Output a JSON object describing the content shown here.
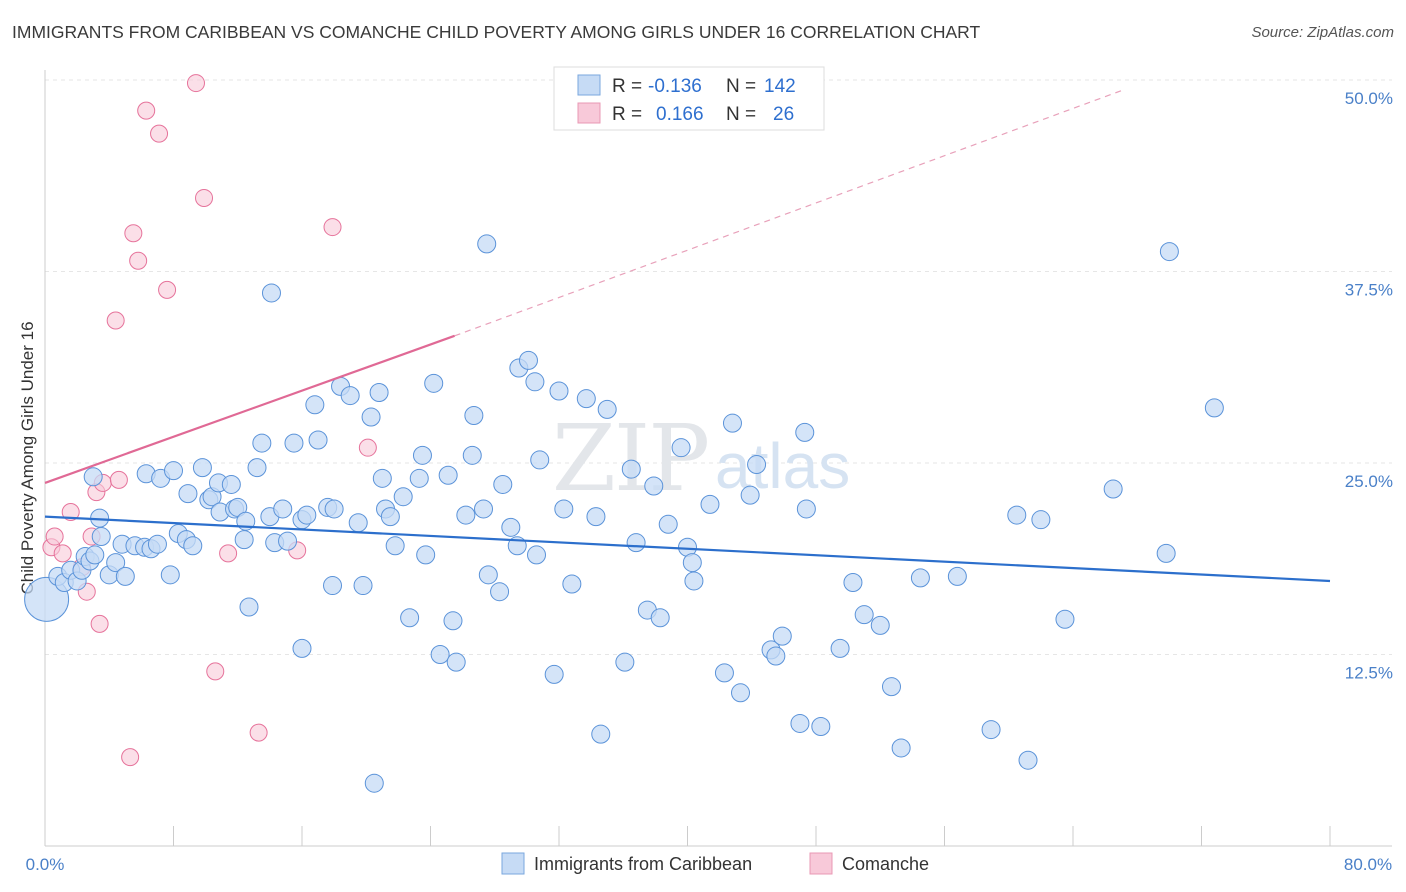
{
  "title": "IMMIGRANTS FROM CARIBBEAN VS COMANCHE CHILD POVERTY AMONG GIRLS UNDER 16 CORRELATION CHART",
  "source": "Source: ZipAtlas.com",
  "watermark": {
    "part1": "ZIP",
    "part2": "atlas"
  },
  "legend": {
    "rows": [
      {
        "r_label": "R =",
        "r_value": "-0.136",
        "n_label": "N =",
        "n_value": "142"
      },
      {
        "r_label": "R =",
        "r_value": "0.166",
        "n_label": "N =",
        "n_value": "26"
      }
    ]
  },
  "bottom_legend": [
    "Immigrants from Caribbean",
    "Comanche"
  ],
  "chart_data": {
    "type": "scatter",
    "ylabel": "Child Poverty Among Girls Under 16",
    "xlabel": "",
    "xlim": [
      0,
      80
    ],
    "ylim": [
      0,
      52
    ],
    "x_tick_labels": {
      "min": "0.0%",
      "max": "80.0%"
    },
    "y_ticks": [
      12.5,
      25.0,
      37.5,
      50.0
    ],
    "y_tick_labels": [
      "12.5%",
      "25.0%",
      "37.5%",
      "50.0%"
    ],
    "grid": true,
    "colors": {
      "caribbean": "#5b93d9",
      "caribbean_fill": "#c6dbf5",
      "comanche": "#e6739b",
      "comanche_fill": "#f8c9d9"
    },
    "series": [
      {
        "name": "Immigrants from Caribbean",
        "R": -0.136,
        "N": 142,
        "trend": {
          "x0": 0,
          "y0": 21.5,
          "x1": 80,
          "y1": 17.3
        },
        "points": [
          [
            0.1,
            16.1
          ],
          [
            0.8,
            17.6
          ],
          [
            1.2,
            17.2
          ],
          [
            1.6,
            18.0
          ],
          [
            2.0,
            17.3
          ],
          [
            2.3,
            18.0
          ],
          [
            2.5,
            18.9
          ],
          [
            2.8,
            18.6
          ],
          [
            3.1,
            19.0
          ],
          [
            3.4,
            21.4
          ],
          [
            3.0,
            24.1
          ],
          [
            4.0,
            17.7
          ],
          [
            4.4,
            18.5
          ],
          [
            5.0,
            17.6
          ],
          [
            4.8,
            19.7
          ],
          [
            5.6,
            19.6
          ],
          [
            6.2,
            19.5
          ],
          [
            6.6,
            19.4
          ],
          [
            7.0,
            19.7
          ],
          [
            7.8,
            17.7
          ],
          [
            6.3,
            24.3
          ],
          [
            7.2,
            24.0
          ],
          [
            8.0,
            24.5
          ],
          [
            8.3,
            20.4
          ],
          [
            8.8,
            20.0
          ],
          [
            9.2,
            19.6
          ],
          [
            8.9,
            23.0
          ],
          [
            9.8,
            24.7
          ],
          [
            10.2,
            22.6
          ],
          [
            10.4,
            22.8
          ],
          [
            10.8,
            23.7
          ],
          [
            10.9,
            21.8
          ],
          [
            11.6,
            23.6
          ],
          [
            11.8,
            22.0
          ],
          [
            12.0,
            22.1
          ],
          [
            12.4,
            20.0
          ],
          [
            12.5,
            21.2
          ],
          [
            12.7,
            15.6
          ],
          [
            13.2,
            24.7
          ],
          [
            13.5,
            26.3
          ],
          [
            14.0,
            21.5
          ],
          [
            14.3,
            19.8
          ],
          [
            14.1,
            36.1
          ],
          [
            14.8,
            22.0
          ],
          [
            15.1,
            19.9
          ],
          [
            15.5,
            26.3
          ],
          [
            16.0,
            21.3
          ],
          [
            16.3,
            21.6
          ],
          [
            16.0,
            12.9
          ],
          [
            16.8,
            28.8
          ],
          [
            17.0,
            26.5
          ],
          [
            17.6,
            22.1
          ],
          [
            18.0,
            22.0
          ],
          [
            17.9,
            17.0
          ],
          [
            18.4,
            30.0
          ],
          [
            19.0,
            29.4
          ],
          [
            19.5,
            21.1
          ],
          [
            19.8,
            17.0
          ],
          [
            20.3,
            28.0
          ],
          [
            20.8,
            29.6
          ],
          [
            21.0,
            24.0
          ],
          [
            21.2,
            22.0
          ],
          [
            21.5,
            21.5
          ],
          [
            21.8,
            19.6
          ],
          [
            22.3,
            22.8
          ],
          [
            22.7,
            14.9
          ],
          [
            23.3,
            24.0
          ],
          [
            23.7,
            19.0
          ],
          [
            24.2,
            30.2
          ],
          [
            24.6,
            12.5
          ],
          [
            25.1,
            24.2
          ],
          [
            25.4,
            14.7
          ],
          [
            25.6,
            12.0
          ],
          [
            26.2,
            21.6
          ],
          [
            26.6,
            25.5
          ],
          [
            26.7,
            28.1
          ],
          [
            27.3,
            22.0
          ],
          [
            27.6,
            17.7
          ],
          [
            27.5,
            39.3
          ],
          [
            28.5,
            23.6
          ],
          [
            28.3,
            16.6
          ],
          [
            29.0,
            20.8
          ],
          [
            29.4,
            19.6
          ],
          [
            29.5,
            31.2
          ],
          [
            30.1,
            31.7
          ],
          [
            30.5,
            30.3
          ],
          [
            30.8,
            25.2
          ],
          [
            31.7,
            11.2
          ],
          [
            32.0,
            29.7
          ],
          [
            32.3,
            22.0
          ],
          [
            32.8,
            17.1
          ],
          [
            33.7,
            29.2
          ],
          [
            34.3,
            21.5
          ],
          [
            34.6,
            7.3
          ],
          [
            35.0,
            28.5
          ],
          [
            36.1,
            12.0
          ],
          [
            36.8,
            19.8
          ],
          [
            36.5,
            24.6
          ],
          [
            37.5,
            15.4
          ],
          [
            37.9,
            23.5
          ],
          [
            38.3,
            14.9
          ],
          [
            38.8,
            21.0
          ],
          [
            39.6,
            26.0
          ],
          [
            40.0,
            19.5
          ],
          [
            40.3,
            18.5
          ],
          [
            40.4,
            17.3
          ],
          [
            41.4,
            22.3
          ],
          [
            42.3,
            11.3
          ],
          [
            42.8,
            27.6
          ],
          [
            43.3,
            10.0
          ],
          [
            43.9,
            22.9
          ],
          [
            44.3,
            24.9
          ],
          [
            45.2,
            12.8
          ],
          [
            45.5,
            12.4
          ],
          [
            45.9,
            13.7
          ],
          [
            47.0,
            8.0
          ],
          [
            47.3,
            27.0
          ],
          [
            47.4,
            22.0
          ],
          [
            48.3,
            7.8
          ],
          [
            49.5,
            12.9
          ],
          [
            50.3,
            17.2
          ],
          [
            51.0,
            15.1
          ],
          [
            52.0,
            14.4
          ],
          [
            52.7,
            10.4
          ],
          [
            53.3,
            6.4
          ],
          [
            54.5,
            17.5
          ],
          [
            56.8,
            17.6
          ],
          [
            58.9,
            7.6
          ],
          [
            60.5,
            21.6
          ],
          [
            61.2,
            5.6
          ],
          [
            62.0,
            21.3
          ],
          [
            63.5,
            14.8
          ],
          [
            66.5,
            23.3
          ],
          [
            70.0,
            38.8
          ],
          [
            69.8,
            19.1
          ],
          [
            72.8,
            28.6
          ],
          [
            20.5,
            4.1
          ],
          [
            23.5,
            25.5
          ],
          [
            30.6,
            19.0
          ],
          [
            3.5,
            20.2
          ]
        ]
      },
      {
        "name": "Comanche",
        "R": 0.166,
        "N": 26,
        "trend": {
          "x0": 0,
          "y0": 23.7,
          "x1": 25.5,
          "y1": 33.3,
          "dash_x1": 67,
          "dash_y1": 49.3
        },
        "points": [
          [
            0.4,
            19.5
          ],
          [
            0.6,
            20.2
          ],
          [
            1.1,
            19.1
          ],
          [
            1.6,
            21.8
          ],
          [
            2.3,
            18.2
          ],
          [
            2.6,
            16.6
          ],
          [
            2.9,
            20.2
          ],
          [
            3.2,
            23.1
          ],
          [
            3.4,
            14.5
          ],
          [
            3.6,
            23.7
          ],
          [
            4.4,
            34.3
          ],
          [
            4.6,
            23.9
          ],
          [
            5.3,
            5.8
          ],
          [
            5.5,
            40.0
          ],
          [
            5.8,
            38.2
          ],
          [
            6.3,
            48.0
          ],
          [
            7.1,
            46.5
          ],
          [
            7.6,
            36.3
          ],
          [
            9.4,
            49.8
          ],
          [
            9.9,
            42.3
          ],
          [
            10.6,
            11.4
          ],
          [
            11.4,
            19.1
          ],
          [
            13.3,
            7.4
          ],
          [
            15.7,
            19.3
          ],
          [
            17.9,
            40.4
          ],
          [
            20.1,
            26.0
          ]
        ]
      }
    ]
  }
}
